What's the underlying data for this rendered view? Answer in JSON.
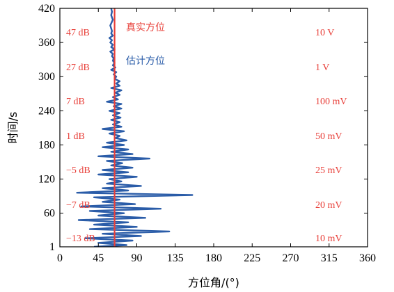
{
  "chart_data": {
    "type": "line",
    "title": "",
    "xlabel": "方位角/(°)",
    "ylabel": "时间/s",
    "xlim": [
      0,
      360
    ],
    "ylim": [
      1,
      420
    ],
    "x_ticks": [
      "0",
      "45",
      "90",
      "135",
      "180",
      "225",
      "270",
      "315",
      "360"
    ],
    "y_ticks": [
      "1",
      "60",
      "120",
      "180",
      "240",
      "300",
      "360",
      "420"
    ],
    "grid": false,
    "legend": [
      {
        "label": "真实方位",
        "color": "#e8403a"
      },
      {
        "label": "估计方位",
        "color": "#2a5ca8"
      }
    ],
    "series": [
      {
        "name": "真实方位",
        "color": "#e8403a",
        "x": [
          64,
          64
        ],
        "y": [
          1,
          420
        ]
      },
      {
        "name": "估计方位",
        "color": "#2a5ca8",
        "x": [
          40,
          78,
          45,
          85,
          30,
          95,
          50,
          128,
          35,
          90,
          40,
          80,
          22,
          100,
          45,
          75,
          35,
          118,
          25,
          88,
          50,
          70,
          40,
          155,
          20,
          80,
          50,
          95,
          55,
          72,
          58,
          90,
          45,
          80,
          50,
          85,
          60,
          73,
          55,
          105,
          45,
          85,
          60,
          80,
          50,
          75,
          55,
          78,
          65,
          70,
          58,
          75,
          50,
          72,
          62,
          70,
          60,
          71,
          62,
          70,
          58,
          72,
          63,
          72,
          55,
          68,
          62,
          70,
          65,
          72,
          60,
          70,
          66,
          70,
          64,
          66,
          63,
          66,
          60,
          65,
          62,
          64,
          62,
          63,
          61,
          62,
          59,
          64,
          60,
          62,
          59,
          61,
          58,
          62,
          60,
          61,
          59,
          62,
          60,
          61,
          60
        ],
        "y": [
          1,
          4,
          8,
          12,
          16,
          20,
          24,
          28,
          32,
          36,
          40,
          44,
          48,
          52,
          56,
          60,
          64,
          68,
          72,
          76,
          80,
          84,
          88,
          92,
          96,
          100,
          104,
          108,
          112,
          116,
          120,
          124,
          128,
          132,
          136,
          140,
          144,
          148,
          152,
          156,
          160,
          164,
          168,
          172,
          176,
          180,
          184,
          188,
          192,
          196,
          200,
          204,
          208,
          212,
          216,
          220,
          224,
          228,
          232,
          236,
          240,
          244,
          248,
          252,
          256,
          260,
          264,
          268,
          272,
          276,
          280,
          284,
          288,
          292,
          296,
          300,
          304,
          308,
          312,
          316,
          320,
          324,
          328,
          332,
          336,
          340,
          344,
          348,
          352,
          356,
          360,
          364,
          368,
          372,
          376,
          380,
          390,
          400,
          408,
          414,
          420
        ]
      }
    ],
    "annotations_left": [
      "47 dB",
      "27 dB",
      "7 dB",
      "1 dB",
      "−5 dB",
      "−7 dB",
      "−13 dB"
    ],
    "annotations_right": [
      "10 V",
      "1 V",
      "100 mV",
      "50 mV",
      "25 mV",
      "20 mV",
      "10 mV"
    ]
  }
}
